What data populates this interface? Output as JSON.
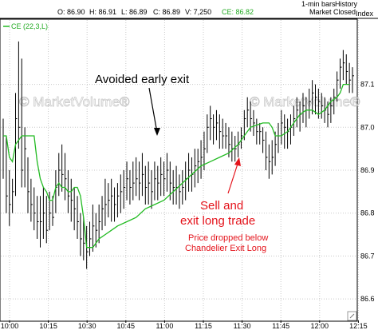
{
  "header": {
    "open": "O: 86.90",
    "high": "H: 86.91",
    "low": "L: 86.89",
    "close": "C: 86.89",
    "volume": "V: 7,250",
    "ce": "CE: 86.82",
    "bars": "1-min bars",
    "history": "History",
    "index": "Index",
    "status": "Market Closed"
  },
  "legend_label": "CE (22,3,L)",
  "watermark": "© MarketVolume®",
  "annotations": {
    "avoided": "Avoided early exit",
    "sell_1": "Sell and",
    "sell_2": "exit long trade",
    "note_1": "Price dropped below",
    "note_2": "Chandelier Exit Long"
  },
  "colors": {
    "background": "#ffffff",
    "grid": "#c8c8c8",
    "bars": "#000000",
    "ce_line": "#22bb22",
    "annotation_red": "#e4131b",
    "watermark": "#cfcfcf"
  },
  "chart_data": {
    "type": "ohlc + line",
    "y_range": [
      86.55,
      87.25
    ],
    "y_ticks": [
      "87.1",
      "87.0",
      "86.9",
      "86.8",
      "86.7",
      "86.6"
    ],
    "x_ticks": [
      "10:00",
      "10:15",
      "10:30",
      "10:45",
      "11:00",
      "11:15",
      "11:30",
      "11:45",
      "12:00",
      "12:15"
    ],
    "bar_interval": "1-min",
    "legend": "CE (22,3,L)",
    "price_bars": [
      {
        "h": 87.02,
        "l": 86.88,
        "c": 86.98
      },
      {
        "h": 86.98,
        "l": 86.8,
        "c": 86.84
      },
      {
        "h": 86.9,
        "l": 86.77,
        "c": 86.82
      },
      {
        "h": 86.88,
        "l": 86.8,
        "c": 86.85
      },
      {
        "h": 87.08,
        "l": 86.84,
        "c": 87.02
      },
      {
        "h": 87.2,
        "l": 86.95,
        "c": 87.0
      },
      {
        "h": 87.16,
        "l": 86.86,
        "c": 86.9
      },
      {
        "h": 87.0,
        "l": 86.86,
        "c": 86.95
      },
      {
        "h": 86.93,
        "l": 86.8,
        "c": 86.85
      },
      {
        "h": 86.88,
        "l": 86.78,
        "c": 86.82
      },
      {
        "h": 86.86,
        "l": 86.76,
        "c": 86.8
      },
      {
        "h": 86.84,
        "l": 86.74,
        "c": 86.78
      },
      {
        "h": 86.84,
        "l": 86.72,
        "c": 86.78
      },
      {
        "h": 86.86,
        "l": 86.74,
        "c": 86.8
      },
      {
        "h": 86.84,
        "l": 86.73,
        "c": 86.76
      },
      {
        "h": 86.85,
        "l": 86.76,
        "c": 86.8
      },
      {
        "h": 86.84,
        "l": 86.77,
        "c": 86.79
      },
      {
        "h": 86.9,
        "l": 86.8,
        "c": 86.86
      },
      {
        "h": 86.94,
        "l": 86.84,
        "c": 86.9
      },
      {
        "h": 86.96,
        "l": 86.85,
        "c": 86.89
      },
      {
        "h": 86.94,
        "l": 86.83,
        "c": 86.88
      },
      {
        "h": 86.9,
        "l": 86.8,
        "c": 86.84
      },
      {
        "h": 86.88,
        "l": 86.78,
        "c": 86.83
      },
      {
        "h": 86.86,
        "l": 86.76,
        "c": 86.81
      },
      {
        "h": 86.84,
        "l": 86.74,
        "c": 86.78
      },
      {
        "h": 86.8,
        "l": 86.7,
        "c": 86.74
      },
      {
        "h": 86.79,
        "l": 86.69,
        "c": 86.73
      },
      {
        "h": 86.77,
        "l": 86.67,
        "c": 86.71
      },
      {
        "h": 86.78,
        "l": 86.7,
        "c": 86.74
      },
      {
        "h": 86.82,
        "l": 86.71,
        "c": 86.77
      },
      {
        "h": 86.8,
        "l": 86.72,
        "c": 86.76
      },
      {
        "h": 86.82,
        "l": 86.73,
        "c": 86.78
      },
      {
        "h": 86.84,
        "l": 86.76,
        "c": 86.81
      },
      {
        "h": 86.88,
        "l": 86.77,
        "c": 86.82
      },
      {
        "h": 86.87,
        "l": 86.79,
        "c": 86.83
      },
      {
        "h": 86.88,
        "l": 86.78,
        "c": 86.84
      },
      {
        "h": 86.86,
        "l": 86.78,
        "c": 86.82
      },
      {
        "h": 86.87,
        "l": 86.79,
        "c": 86.84
      },
      {
        "h": 86.89,
        "l": 86.8,
        "c": 86.85
      },
      {
        "h": 86.9,
        "l": 86.81,
        "c": 86.86
      },
      {
        "h": 86.92,
        "l": 86.83,
        "c": 86.88
      },
      {
        "h": 86.9,
        "l": 86.82,
        "c": 86.86
      },
      {
        "h": 86.92,
        "l": 86.83,
        "c": 86.87
      },
      {
        "h": 86.93,
        "l": 86.84,
        "c": 86.88
      },
      {
        "h": 86.92,
        "l": 86.83,
        "c": 86.87
      },
      {
        "h": 86.94,
        "l": 86.84,
        "c": 86.89
      },
      {
        "h": 86.91,
        "l": 86.82,
        "c": 86.86
      },
      {
        "h": 86.92,
        "l": 86.82,
        "c": 86.87
      },
      {
        "h": 86.9,
        "l": 86.81,
        "c": 86.85
      },
      {
        "h": 86.92,
        "l": 86.83,
        "c": 86.88
      },
      {
        "h": 86.91,
        "l": 86.83,
        "c": 86.87
      },
      {
        "h": 86.93,
        "l": 86.84,
        "c": 86.89
      },
      {
        "h": 86.92,
        "l": 86.84,
        "c": 86.88
      },
      {
        "h": 86.94,
        "l": 86.85,
        "c": 86.9
      },
      {
        "h": 86.92,
        "l": 86.83,
        "c": 86.87
      },
      {
        "h": 86.9,
        "l": 86.82,
        "c": 86.86
      },
      {
        "h": 86.91,
        "l": 86.82,
        "c": 86.86
      },
      {
        "h": 86.89,
        "l": 86.81,
        "c": 86.85
      },
      {
        "h": 86.9,
        "l": 86.82,
        "c": 86.86
      },
      {
        "h": 86.92,
        "l": 86.83,
        "c": 86.88
      },
      {
        "h": 86.94,
        "l": 86.85,
        "c": 86.9
      },
      {
        "h": 86.93,
        "l": 86.85,
        "c": 86.89
      },
      {
        "h": 86.95,
        "l": 86.86,
        "c": 86.91
      },
      {
        "h": 86.95,
        "l": 86.87,
        "c": 86.92
      },
      {
        "h": 86.97,
        "l": 86.88,
        "c": 86.93
      },
      {
        "h": 86.99,
        "l": 86.9,
        "c": 86.95
      },
      {
        "h": 87.03,
        "l": 86.94,
        "c": 87.0
      },
      {
        "h": 87.05,
        "l": 86.97,
        "c": 87.02
      },
      {
        "h": 87.03,
        "l": 86.96,
        "c": 87.0
      },
      {
        "h": 87.04,
        "l": 86.97,
        "c": 87.01
      },
      {
        "h": 87.03,
        "l": 86.95,
        "c": 86.99
      },
      {
        "h": 87.02,
        "l": 86.95,
        "c": 86.98
      },
      {
        "h": 87.01,
        "l": 86.95,
        "c": 86.98
      },
      {
        "h": 87.0,
        "l": 86.93,
        "c": 86.96
      },
      {
        "h": 86.99,
        "l": 86.92,
        "c": 86.95
      },
      {
        "h": 86.98,
        "l": 86.92,
        "c": 86.95
      },
      {
        "h": 86.99,
        "l": 86.93,
        "c": 86.96
      },
      {
        "h": 87.0,
        "l": 86.95,
        "c": 86.98
      },
      {
        "h": 87.04,
        "l": 86.97,
        "c": 87.02
      },
      {
        "h": 87.07,
        "l": 87.0,
        "c": 87.04
      },
      {
        "h": 87.06,
        "l": 86.99,
        "c": 87.02
      },
      {
        "h": 87.04,
        "l": 86.98,
        "c": 87.01
      },
      {
        "h": 87.02,
        "l": 86.96,
        "c": 86.99
      },
      {
        "h": 87.01,
        "l": 86.96,
        "c": 86.99
      },
      {
        "h": 87.0,
        "l": 86.94,
        "c": 86.97
      },
      {
        "h": 86.99,
        "l": 86.9,
        "c": 86.93
      },
      {
        "h": 86.96,
        "l": 86.88,
        "c": 86.92
      },
      {
        "h": 86.97,
        "l": 86.89,
        "c": 86.93
      },
      {
        "h": 86.99,
        "l": 86.91,
        "c": 86.96
      },
      {
        "h": 87.01,
        "l": 86.94,
        "c": 86.98
      },
      {
        "h": 87.04,
        "l": 86.96,
        "c": 87.01
      },
      {
        "h": 87.03,
        "l": 86.95,
        "c": 87.0
      },
      {
        "h": 87.02,
        "l": 86.95,
        "c": 86.99
      },
      {
        "h": 87.03,
        "l": 86.96,
        "c": 87.0
      },
      {
        "h": 87.05,
        "l": 86.98,
        "c": 87.02
      },
      {
        "h": 87.07,
        "l": 87.0,
        "c": 87.04
      },
      {
        "h": 87.06,
        "l": 86.99,
        "c": 87.03
      },
      {
        "h": 87.08,
        "l": 87.01,
        "c": 87.05
      },
      {
        "h": 87.07,
        "l": 87.0,
        "c": 87.04
      },
      {
        "h": 87.09,
        "l": 87.02,
        "c": 87.06
      },
      {
        "h": 87.11,
        "l": 87.03,
        "c": 87.08
      },
      {
        "h": 87.1,
        "l": 87.03,
        "c": 87.07
      },
      {
        "h": 87.09,
        "l": 87.02,
        "c": 87.06
      },
      {
        "h": 87.08,
        "l": 87.02,
        "c": 87.05
      },
      {
        "h": 87.07,
        "l": 87.01,
        "c": 87.04
      },
      {
        "h": 87.06,
        "l": 87.0,
        "c": 87.03
      },
      {
        "h": 87.07,
        "l": 87.01,
        "c": 87.05
      },
      {
        "h": 87.09,
        "l": 87.03,
        "c": 87.07
      },
      {
        "h": 87.13,
        "l": 87.06,
        "c": 87.11
      },
      {
        "h": 87.16,
        "l": 87.09,
        "c": 87.14
      },
      {
        "h": 87.18,
        "l": 87.11,
        "c": 87.15
      },
      {
        "h": 87.17,
        "l": 87.1,
        "c": 87.13
      },
      {
        "h": 87.15,
        "l": 87.08,
        "c": 87.11
      },
      {
        "h": 87.14,
        "l": 87.08,
        "c": 87.12
      }
    ],
    "ce_line": [
      {
        "i": 0,
        "v": 86.98
      },
      {
        "i": 1,
        "v": 86.98
      },
      {
        "i": 2,
        "v": 86.93
      },
      {
        "i": 3,
        "v": 86.92
      },
      {
        "i": 4,
        "v": 86.96
      },
      {
        "i": 6,
        "v": 86.98
      },
      {
        "i": 9,
        "v": 86.98
      },
      {
        "i": 10,
        "v": 86.98
      },
      {
        "i": 11,
        "v": 86.92
      },
      {
        "i": 12,
        "v": 86.88
      },
      {
        "i": 13,
        "v": 86.86
      },
      {
        "i": 14,
        "v": 86.85
      },
      {
        "i": 15,
        "v": 86.83
      },
      {
        "i": 16,
        "v": 86.83
      },
      {
        "i": 17,
        "v": 86.86
      },
      {
        "i": 18,
        "v": 86.87
      },
      {
        "i": 19,
        "v": 86.86
      },
      {
        "i": 20,
        "v": 86.86
      },
      {
        "i": 21,
        "v": 86.85
      },
      {
        "i": 22,
        "v": 86.85
      },
      {
        "i": 23,
        "v": 86.86
      },
      {
        "i": 24,
        "v": 86.86
      },
      {
        "i": 25,
        "v": 86.84
      },
      {
        "i": 26,
        "v": 86.79
      },
      {
        "i": 27,
        "v": 86.72
      },
      {
        "i": 29,
        "v": 86.72
      },
      {
        "i": 31,
        "v": 86.74
      },
      {
        "i": 33,
        "v": 86.75
      },
      {
        "i": 35,
        "v": 86.76
      },
      {
        "i": 37,
        "v": 86.77
      },
      {
        "i": 40,
        "v": 86.78
      },
      {
        "i": 43,
        "v": 86.79
      },
      {
        "i": 46,
        "v": 86.81
      },
      {
        "i": 49,
        "v": 86.82
      },
      {
        "i": 52,
        "v": 86.83
      },
      {
        "i": 55,
        "v": 86.85
      },
      {
        "i": 58,
        "v": 86.87
      },
      {
        "i": 61,
        "v": 86.89
      },
      {
        "i": 64,
        "v": 86.91
      },
      {
        "i": 67,
        "v": 86.92
      },
      {
        "i": 70,
        "v": 86.93
      },
      {
        "i": 73,
        "v": 86.94
      },
      {
        "i": 76,
        "v": 86.96
      },
      {
        "i": 78,
        "v": 86.98
      },
      {
        "i": 80,
        "v": 87.0
      },
      {
        "i": 84,
        "v": 87.01
      },
      {
        "i": 86,
        "v": 87.01
      },
      {
        "i": 87,
        "v": 87.0
      },
      {
        "i": 88,
        "v": 86.98
      },
      {
        "i": 90,
        "v": 86.98
      },
      {
        "i": 92,
        "v": 86.99
      },
      {
        "i": 94,
        "v": 87.01
      },
      {
        "i": 96,
        "v": 87.03
      },
      {
        "i": 98,
        "v": 87.04
      },
      {
        "i": 100,
        "v": 87.04
      },
      {
        "i": 102,
        "v": 87.03
      },
      {
        "i": 104,
        "v": 87.04
      },
      {
        "i": 106,
        "v": 87.06
      },
      {
        "i": 108,
        "v": 87.07
      },
      {
        "i": 109,
        "v": 87.08
      },
      {
        "i": 110,
        "v": 87.1
      },
      {
        "i": 111,
        "v": 87.1
      },
      {
        "i": 112,
        "v": 87.1
      }
    ]
  }
}
